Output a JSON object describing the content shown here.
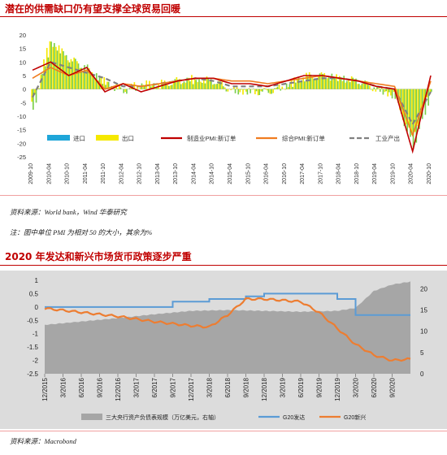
{
  "top": {
    "title": "潜在的供需缺口仍有望支撑全球贸易回暖",
    "source": "资料来源：World bank，Wind 华泰研究",
    "note": "注：图中单位 PMI 为相对 50 的大小，其余为%"
  },
  "bottom": {
    "title": "2020 年发达和新兴市场货币政策逐步严重",
    "source": "资料来源：Macrobond"
  },
  "colors": {
    "title_red": "#c00000",
    "import": "#1fa6d9",
    "export": "#f5e800",
    "mfg_pmi": "#c00000",
    "comp_pmi": "#f07c20",
    "ind_prod": "#808080",
    "bal_sheet": "#a6a6a6",
    "g20_dev": "#5b9bd5",
    "g20_em": "#ed7d31"
  },
  "chart_data": [
    {
      "type": "bar",
      "ylim": [
        -25,
        20
      ],
      "yticks": [
        20,
        15,
        10,
        5,
        0,
        -5,
        -10,
        -15,
        -20,
        -25
      ],
      "xticks": [
        "2009-10",
        "2010-04",
        "2010-10",
        "2011-04",
        "2011-10",
        "2012-04",
        "2012-10",
        "2013-04",
        "2013-10",
        "2014-04",
        "2014-10",
        "2015-04",
        "2015-10",
        "2016-04",
        "2016-10",
        "2017-04",
        "2017-10",
        "2018-04",
        "2018-10",
        "2019-04",
        "2019-10",
        "2020-04",
        "2020-10"
      ],
      "legend_position": "bottom",
      "series": [
        {
          "name": "进口",
          "kind": "bar",
          "points": [
            [
              "2009-10",
              -8
            ],
            [
              "2010-04",
              17
            ],
            [
              "2010-10",
              11
            ],
            [
              "2011-04",
              8
            ],
            [
              "2011-10",
              2
            ],
            [
              "2012-04",
              -1
            ],
            [
              "2012-10",
              1
            ],
            [
              "2013-04",
              1
            ],
            [
              "2013-10",
              3
            ],
            [
              "2014-04",
              3
            ],
            [
              "2014-10",
              3
            ],
            [
              "2015-04",
              -1
            ],
            [
              "2015-10",
              -1
            ],
            [
              "2016-04",
              -1
            ],
            [
              "2016-10",
              1
            ],
            [
              "2017-04",
              4
            ],
            [
              "2017-10",
              5
            ],
            [
              "2018-04",
              4
            ],
            [
              "2018-10",
              3
            ],
            [
              "2019-04",
              0
            ],
            [
              "2019-10",
              -3
            ],
            [
              "2020-04",
              -22
            ],
            [
              "2020-10",
              -2
            ]
          ]
        },
        {
          "name": "出口",
          "kind": "bar",
          "points": [
            [
              "2009-10",
              -6
            ],
            [
              "2010-04",
              18
            ],
            [
              "2010-10",
              12
            ],
            [
              "2011-04",
              7
            ],
            [
              "2011-10",
              3
            ],
            [
              "2012-04",
              0
            ],
            [
              "2012-10",
              2
            ],
            [
              "2013-04",
              2
            ],
            [
              "2013-10",
              3
            ],
            [
              "2014-04",
              4
            ],
            [
              "2014-10",
              3
            ],
            [
              "2015-04",
              0
            ],
            [
              "2015-10",
              -1
            ],
            [
              "2016-04",
              -1
            ],
            [
              "2016-10",
              1
            ],
            [
              "2017-04",
              5
            ],
            [
              "2017-10",
              5
            ],
            [
              "2018-04",
              4
            ],
            [
              "2018-10",
              3
            ],
            [
              "2019-04",
              0
            ],
            [
              "2019-10",
              -2
            ],
            [
              "2020-04",
              -18
            ],
            [
              "2020-10",
              -1
            ]
          ]
        },
        {
          "name": "制造业PMI:新订单",
          "kind": "line",
          "points": [
            [
              "2009-10",
              7
            ],
            [
              "2010-04",
              10
            ],
            [
              "2010-10",
              5
            ],
            [
              "2011-04",
              8
            ],
            [
              "2011-10",
              -1
            ],
            [
              "2012-04",
              2
            ],
            [
              "2012-10",
              -1
            ],
            [
              "2013-04",
              1
            ],
            [
              "2013-10",
              3
            ],
            [
              "2014-04",
              4
            ],
            [
              "2014-10",
              4
            ],
            [
              "2015-04",
              2
            ],
            [
              "2015-10",
              2
            ],
            [
              "2016-04",
              1
            ],
            [
              "2016-10",
              3
            ],
            [
              "2017-04",
              5
            ],
            [
              "2017-10",
              5
            ],
            [
              "2018-04",
              4
            ],
            [
              "2018-10",
              3
            ],
            [
              "2019-04",
              1
            ],
            [
              "2019-10",
              0
            ],
            [
              "2020-04",
              -23
            ],
            [
              "2020-10",
              5
            ]
          ]
        },
        {
          "name": "综合PMI:新订单",
          "kind": "line",
          "points": [
            [
              "2009-10",
              4
            ],
            [
              "2010-04",
              8
            ],
            [
              "2010-10",
              5
            ],
            [
              "2011-04",
              7
            ],
            [
              "2011-10",
              0
            ],
            [
              "2012-04",
              2
            ],
            [
              "2012-10",
              1
            ],
            [
              "2013-04",
              2
            ],
            [
              "2013-10",
              3
            ],
            [
              "2014-04",
              4
            ],
            [
              "2014-10",
              4
            ],
            [
              "2015-04",
              3
            ],
            [
              "2015-10",
              3
            ],
            [
              "2016-04",
              2
            ],
            [
              "2016-10",
              3
            ],
            [
              "2017-04",
              4
            ],
            [
              "2017-10",
              5
            ],
            [
              "2018-04",
              4
            ],
            [
              "2018-10",
              3
            ],
            [
              "2019-04",
              2
            ],
            [
              "2019-10",
              1
            ],
            [
              "2020-04",
              -17
            ],
            [
              "2020-10",
              3
            ]
          ]
        },
        {
          "name": "工业产出",
          "kind": "line-dashed",
          "points": [
            [
              "2009-10",
              -3
            ],
            [
              "2010-04",
              10
            ],
            [
              "2010-10",
              8
            ],
            [
              "2011-04",
              6
            ],
            [
              "2011-10",
              4
            ],
            [
              "2012-04",
              1
            ],
            [
              "2012-10",
              1
            ],
            [
              "2013-04",
              2
            ],
            [
              "2013-10",
              3
            ],
            [
              "2014-04",
              4
            ],
            [
              "2014-10",
              3
            ],
            [
              "2015-04",
              1
            ],
            [
              "2015-10",
              1
            ],
            [
              "2016-04",
              1
            ],
            [
              "2016-10",
              2
            ],
            [
              "2017-04",
              3
            ],
            [
              "2017-10",
              4
            ],
            [
              "2018-04",
              4
            ],
            [
              "2018-10",
              3
            ],
            [
              "2019-04",
              1
            ],
            [
              "2019-10",
              0
            ],
            [
              "2020-04",
              -13
            ],
            [
              "2020-10",
              -1
            ]
          ]
        }
      ]
    },
    {
      "type": "area",
      "ylim_left": [
        -2.5,
        1
      ],
      "yticks_left": [
        1,
        0.5,
        0,
        -0.5,
        -1,
        -1.5,
        -2,
        -2.5
      ],
      "ylim_right": [
        0,
        22
      ],
      "yticks_right": [
        20,
        15,
        10,
        5,
        0
      ],
      "xticks": [
        "12/2015",
        "3/2016",
        "6/2016",
        "9/2016",
        "12/2016",
        "3/2017",
        "6/2017",
        "9/2017",
        "12/2017",
        "3/2018",
        "6/2018",
        "9/2018",
        "12/2018",
        "3/2019",
        "6/2019",
        "9/2019",
        "12/2019",
        "3/2020",
        "6/2020",
        "9/2020"
      ],
      "legend_position": "bottom",
      "series": [
        {
          "name": "三大央行资产负债表规模（万亿美元，右轴）",
          "kind": "area",
          "axis": "right",
          "points": [
            [
              "12/2015",
              11.5
            ],
            [
              "6/2016",
              12.3
            ],
            [
              "12/2016",
              13.1
            ],
            [
              "6/2017",
              14
            ],
            [
              "12/2017",
              14.8
            ],
            [
              "6/2018",
              15
            ],
            [
              "12/2018",
              14.8
            ],
            [
              "6/2019",
              14.6
            ],
            [
              "12/2019",
              14.8
            ],
            [
              "3/2020",
              15.5
            ],
            [
              "6/2020",
              19.5
            ],
            [
              "9/2020",
              21
            ],
            [
              "12/2020",
              21.7
            ]
          ]
        },
        {
          "name": "G20发达",
          "kind": "line",
          "axis": "left",
          "points": [
            [
              "12/2015",
              0
            ],
            [
              "6/2016",
              0
            ],
            [
              "3/2017",
              0
            ],
            [
              "9/2017",
              0.2
            ],
            [
              "3/2018",
              0.3
            ],
            [
              "9/2018",
              0.4
            ],
            [
              "12/2018",
              0.5
            ],
            [
              "6/2019",
              0.5
            ],
            [
              "9/2019",
              0.5
            ],
            [
              "12/2019",
              0.3
            ],
            [
              "3/2020",
              -0.3
            ],
            [
              "9/2020",
              -0.3
            ],
            [
              "12/2020",
              -0.3
            ]
          ]
        },
        {
          "name": "G20新兴",
          "kind": "line",
          "axis": "left",
          "points": [
            [
              "12/2015",
              -0.05
            ],
            [
              "6/2016",
              -0.2
            ],
            [
              "12/2016",
              -0.35
            ],
            [
              "6/2017",
              -0.55
            ],
            [
              "12/2017",
              -0.7
            ],
            [
              "3/2018",
              -0.75
            ],
            [
              "6/2018",
              -0.3
            ],
            [
              "9/2018",
              0.3
            ],
            [
              "12/2018",
              0.3
            ],
            [
              "6/2019",
              0.2
            ],
            [
              "9/2019",
              -0.2
            ],
            [
              "12/2019",
              -0.8
            ],
            [
              "3/2020",
              -1.4
            ],
            [
              "6/2020",
              -1.8
            ],
            [
              "9/2020",
              -2
            ],
            [
              "12/2020",
              -1.95
            ]
          ]
        }
      ]
    }
  ]
}
